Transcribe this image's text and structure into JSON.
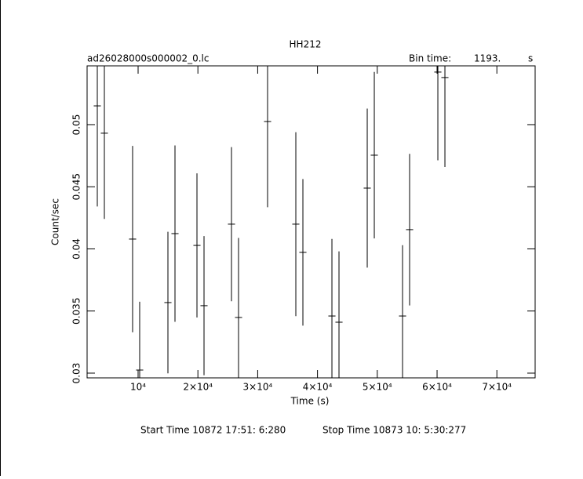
{
  "chart_data": {
    "type": "errorbar",
    "title": "HH212",
    "subtitle": "ad26028000s000002_0.lc",
    "bin_time_label": "Bin time:",
    "bin_time": "1193.",
    "bin_time_unit": "s",
    "xlabel": "Time (s)",
    "ylabel": "Count/sec",
    "start_time": "Start Time 10872 17:51: 6:280",
    "stop_time": "Stop Time 10873 10: 5:30:277",
    "xlim": [
      1470,
      76400
    ],
    "ylim": [
      0.02962,
      0.05473
    ],
    "xticks": [
      {
        "value": 10000,
        "label": "10⁴"
      },
      {
        "value": 20000,
        "label": "2×10⁴"
      },
      {
        "value": 30000,
        "label": "3×10⁴"
      },
      {
        "value": 40000,
        "label": "4×10⁴"
      },
      {
        "value": 50000,
        "label": "5×10⁴"
      },
      {
        "value": 60000,
        "label": "6×10⁴"
      },
      {
        "value": 70000,
        "label": "7×10⁴"
      }
    ],
    "yticks": [
      0.03,
      0.035,
      0.04,
      0.045,
      0.05
    ],
    "series": [
      {
        "color": "#000000",
        "x": [
          3176,
          4357,
          9081,
          10262,
          14987,
          16168,
          19843,
          21024,
          25617,
          26798,
          31654,
          36378,
          37559,
          42415,
          43596,
          48320,
          49501,
          54226,
          55407,
          60131,
          61312
        ],
        "values": [
          0.05151,
          0.04931,
          0.04079,
          0.03025,
          0.03568,
          0.04123,
          0.04028,
          0.03543,
          0.04199,
          0.03448,
          0.05025,
          0.04199,
          0.03972,
          0.0346,
          0.0341,
          0.04489,
          0.04754,
          0.0346,
          0.04155,
          0.05423,
          0.05379
        ],
        "errors": [
          0.0081,
          0.0069,
          0.0075,
          0.0055,
          0.0057,
          0.0071,
          0.0058,
          0.0056,
          0.0062,
          0.0064,
          0.0069,
          0.0074,
          0.0059,
          0.0062,
          0.0057,
          0.0064,
          0.0067,
          0.0057,
          0.0061,
          0.0071,
          0.0072
        ],
        "xerr": 596.5
      }
    ]
  }
}
